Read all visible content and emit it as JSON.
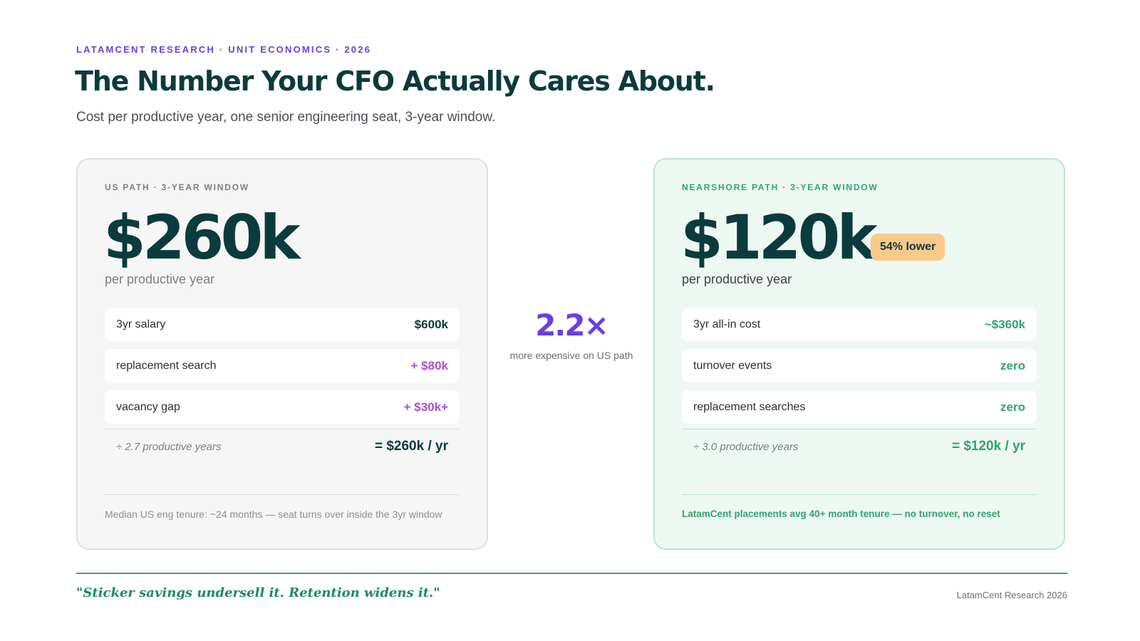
{
  "header": {
    "eyebrow": "LATAMCENT RESEARCH · UNIT ECONOMICS · 2026",
    "title": "The Number Your CFO Actually Cares About.",
    "subtitle": "Cost per productive year, one senior engineering seat, 3-year window."
  },
  "us_card": {
    "label": "US PATH · 3-YEAR WINDOW",
    "amount": "$260k",
    "per": "per productive year",
    "lines": [
      {
        "label": "3yr salary",
        "value": "$600k"
      },
      {
        "label": "replacement search",
        "value": "+ $80k"
      },
      {
        "label": "vacancy gap",
        "value": "+ $30k+"
      }
    ],
    "calc_label": "÷ 2.7 productive years",
    "calc_value": "= $260k / yr",
    "note": "Median US eng tenure: ~24 months — seat turns over inside the 3yr window"
  },
  "multiplier": {
    "value": "2.2×",
    "text": "more expensive on US path"
  },
  "nearshore_card": {
    "label": "NEARSHORE PATH · 3-YEAR WINDOW",
    "amount": "$120k",
    "badge": "54% lower",
    "per": "per productive year",
    "lines": [
      {
        "label": "3yr all-in cost",
        "value": "~$360k"
      },
      {
        "label": "turnover events",
        "value": "zero"
      },
      {
        "label": "replacement searches",
        "value": "zero"
      }
    ],
    "calc_label": "÷ 3.0 productive years",
    "calc_value": "= $120k / yr",
    "note": "LatamCent placements avg 40+ month tenure — no turnover, no reset"
  },
  "footer": {
    "quote": "\"Sticker savings undersell it. Retention widens it.\"",
    "credit": "LatamCent Research 2026"
  },
  "colors": {
    "brand_purple": "#6a3fe0",
    "dark_teal": "#0b3b3c",
    "green": "#2fa56c",
    "purple_addon": "#a94fd6",
    "badge_orange": "#f9c98a"
  }
}
